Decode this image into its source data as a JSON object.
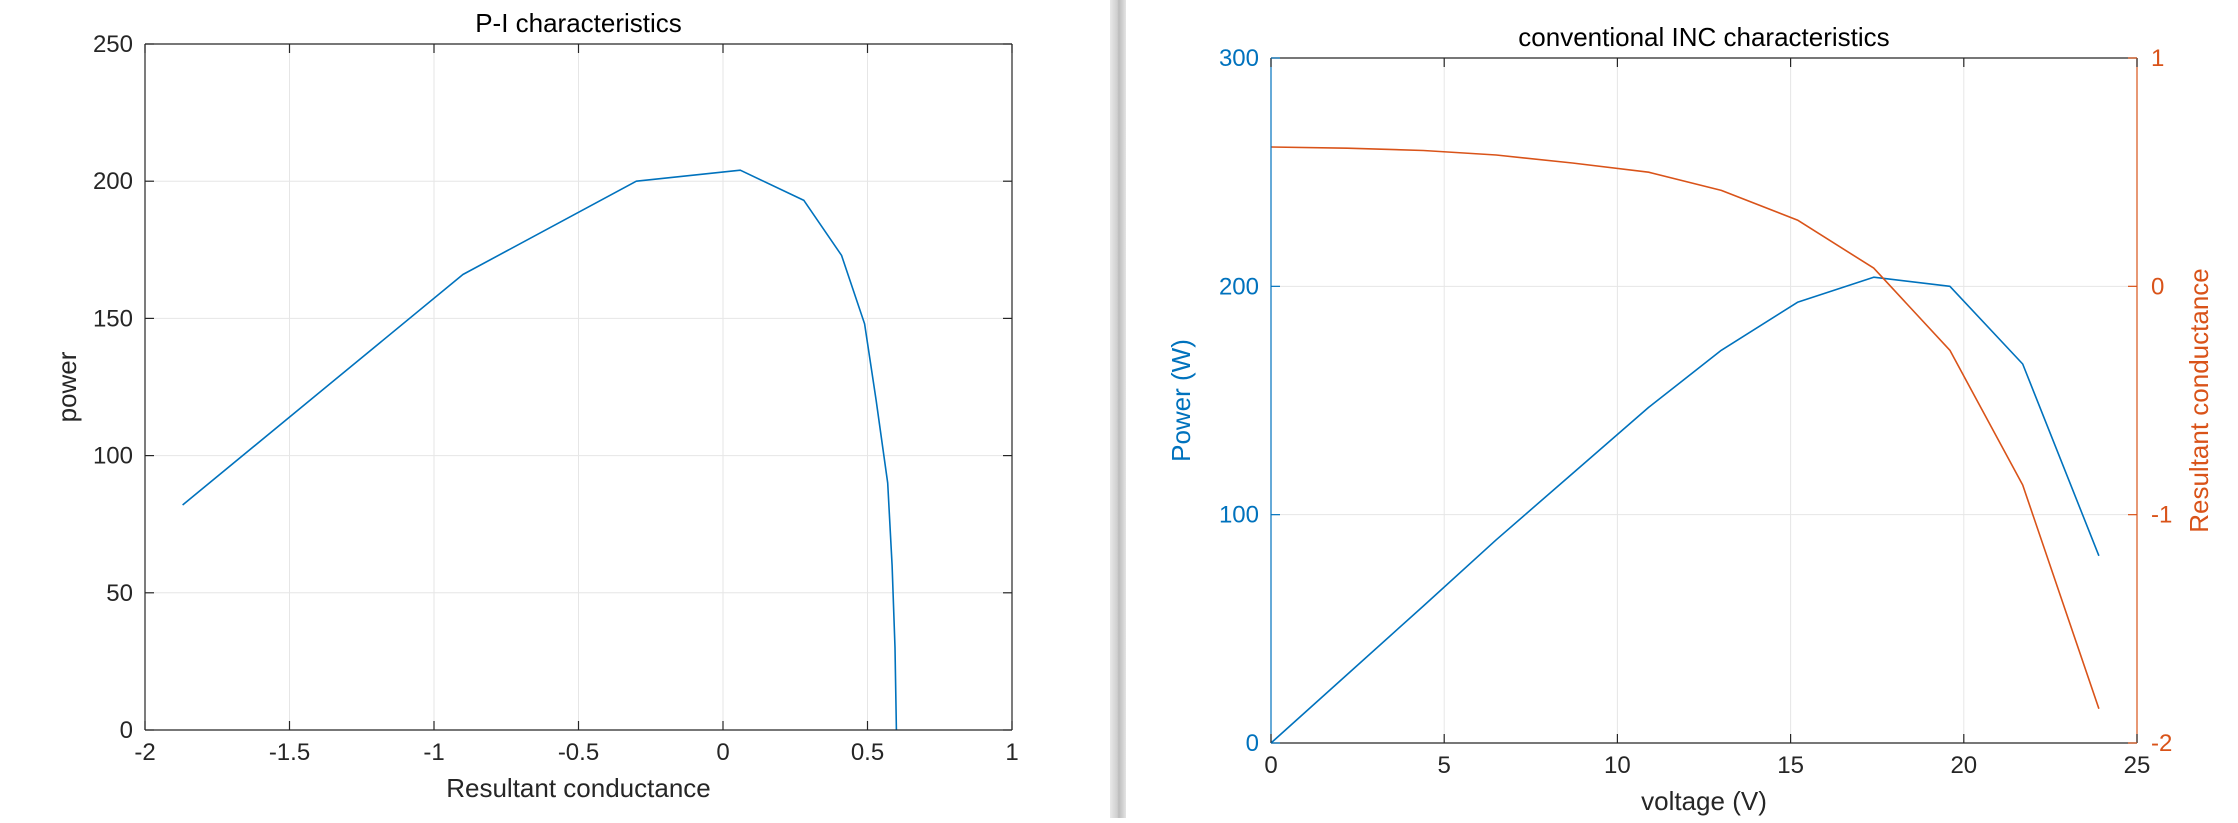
{
  "chart_data": [
    {
      "type": "line",
      "title": "P-I characteristics",
      "xlabel": "Resultant conductance",
      "ylabel": "power",
      "xlim": [
        -2,
        1
      ],
      "ylim": [
        0,
        250
      ],
      "xticks": [
        -2,
        -1.5,
        -1,
        -0.5,
        0,
        0.5,
        1
      ],
      "yticks": [
        0,
        50,
        100,
        150,
        200,
        250
      ],
      "xtick_labels": [
        "-2",
        "-1.5",
        "-1",
        "-0.5",
        "0",
        "0.5",
        "1"
      ],
      "ytick_labels": [
        "0",
        "50",
        "100",
        "150",
        "200",
        "250"
      ],
      "grid": true,
      "series": [
        {
          "color": "#0072BD",
          "points": [
            [
              -1.87,
              82
            ],
            [
              -0.9,
              166
            ],
            [
              -0.3,
              200
            ],
            [
              0.06,
              204
            ],
            [
              0.28,
              193
            ],
            [
              0.41,
              173
            ],
            [
              0.49,
              148
            ],
            [
              0.53,
              120
            ],
            [
              0.57,
              90
            ],
            [
              0.585,
              60
            ],
            [
              0.595,
              30
            ],
            [
              0.6,
              0
            ]
          ]
        }
      ]
    },
    {
      "type": "line",
      "title": "conventional INC characteristics",
      "xlabel": "voltage (V)",
      "ylabel": "Power (W)",
      "y2label": "Resultant conductance",
      "xlim": [
        0,
        25
      ],
      "ylim": [
        0,
        300
      ],
      "y2lim": [
        -2,
        1
      ],
      "xticks": [
        0,
        5,
        10,
        15,
        20,
        25
      ],
      "yticks": [
        0,
        100,
        200,
        300
      ],
      "y2ticks": [
        -2,
        -1,
        0,
        1
      ],
      "xtick_labels": [
        "0",
        "5",
        "10",
        "15",
        "20",
        "25"
      ],
      "ytick_labels": [
        "0",
        "100",
        "200",
        "300"
      ],
      "y2tick_labels": [
        "-2",
        "-1",
        "0",
        "1"
      ],
      "grid": true,
      "left_color": "#0072BD",
      "right_color": "#D95319",
      "series": [
        {
          "axis": "left",
          "color": "#0072BD",
          "points": [
            [
              0,
              0
            ],
            [
              2.2,
              30
            ],
            [
              4.4,
              60
            ],
            [
              6.5,
              89
            ],
            [
              8.7,
              118
            ],
            [
              10.9,
              147
            ],
            [
              13.0,
              172
            ],
            [
              15.2,
              193
            ],
            [
              17.4,
              204
            ],
            [
              19.6,
              200
            ],
            [
              21.7,
              166
            ],
            [
              23.9,
              82
            ]
          ]
        },
        {
          "axis": "right",
          "color": "#D95319",
          "points": [
            [
              0,
              0.61
            ],
            [
              2.2,
              0.605
            ],
            [
              4.4,
              0.595
            ],
            [
              6.5,
              0.575
            ],
            [
              8.7,
              0.54
            ],
            [
              10.9,
              0.5
            ],
            [
              13.0,
              0.42
            ],
            [
              15.2,
              0.29
            ],
            [
              17.4,
              0.08
            ],
            [
              19.6,
              -0.28
            ],
            [
              21.7,
              -0.87
            ],
            [
              23.9,
              -1.85
            ]
          ]
        }
      ]
    }
  ]
}
